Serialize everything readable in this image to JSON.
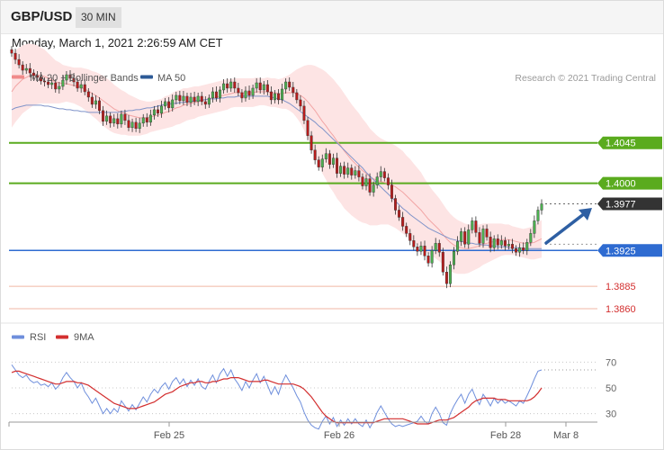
{
  "header": {
    "symbol": "GBP/USD",
    "timeframe": "30 MIN"
  },
  "subheader": {
    "datetime": "Monday, March 1, 2021 2:26:59 AM CET"
  },
  "colors": {
    "up_candle": "#4caf50",
    "down_candle": "#b71c1c",
    "bollinger": "#f2a0a0",
    "ma50": "#7f93c9",
    "resistance": "#5aab1e",
    "support": "#2e6bd1",
    "minor": "#f0b7a4",
    "rsi": "#6f8fdc",
    "rsi_ma": "#d32f2f",
    "arrow": "#2e5fa3"
  },
  "chart_data": [
    {
      "type": "candlestick",
      "legend": [
        {
          "name": "MA 20 + Bollinger Bands",
          "color": "#f08a8a"
        },
        {
          "name": "MA 50",
          "color": "#2d5a96"
        }
      ],
      "credit": "Research © 2021 Trading Central",
      "ylim": [
        1.3845,
        1.4112
      ],
      "x_ticks": [
        "Feb 25",
        "Feb 26",
        "Feb 28",
        "Mar 8"
      ],
      "price_levels": [
        {
          "value": 1.4045,
          "label": "1.4045",
          "kind": "resistance"
        },
        {
          "value": 1.4,
          "label": "1.4000",
          "kind": "resistance"
        },
        {
          "value": 1.3977,
          "label": "1.3977",
          "kind": "last"
        },
        {
          "value": 1.3925,
          "label": "1.3925",
          "kind": "support"
        },
        {
          "value": 1.3885,
          "label": "1.3885",
          "kind": "minor"
        },
        {
          "value": 1.386,
          "label": "1.3860",
          "kind": "minor"
        }
      ],
      "close": [
        1.4145,
        1.4138,
        1.4132,
        1.4126,
        1.4128,
        1.4123,
        1.412,
        1.4118,
        1.4114,
        1.4113,
        1.411,
        1.4112,
        1.4105,
        1.4108,
        1.4115,
        1.4121,
        1.4117,
        1.4113,
        1.4106,
        1.411,
        1.4102,
        1.4096,
        1.4088,
        1.4092,
        1.4081,
        1.4069,
        1.4075,
        1.4067,
        1.4072,
        1.4066,
        1.4077,
        1.407,
        1.4062,
        1.4068,
        1.4061,
        1.4067,
        1.4073,
        1.4068,
        1.4076,
        1.4082,
        1.4078,
        1.4086,
        1.4091,
        1.4084,
        1.4093,
        1.4098,
        1.4092,
        1.4097,
        1.409,
        1.4096,
        1.4091,
        1.4097,
        1.4091,
        1.4088,
        1.4095,
        1.4102,
        1.4095,
        1.4104,
        1.4111,
        1.4106,
        1.4113,
        1.4106,
        1.4101,
        1.4095,
        1.4103,
        1.4098,
        1.4106,
        1.4112,
        1.4104,
        1.411,
        1.4102,
        1.4093,
        1.41,
        1.4093,
        1.4105,
        1.4113,
        1.4107,
        1.4101,
        1.4093,
        1.4086,
        1.407,
        1.4053,
        1.4037,
        1.4026,
        1.4018,
        1.4027,
        1.4033,
        1.4021,
        1.4028,
        1.4011,
        1.4019,
        1.401,
        1.4017,
        1.4009,
        1.4014,
        1.4007,
        1.3997,
        1.4005,
        1.399,
        1.3998,
        1.4007,
        1.4013,
        1.4006,
        1.3998,
        1.3983,
        1.397,
        1.3962,
        1.3952,
        1.3944,
        1.3936,
        1.3929,
        1.3924,
        1.393,
        1.3919,
        1.3911,
        1.3925,
        1.3933,
        1.3923,
        1.3901,
        1.3888,
        1.3909,
        1.3924,
        1.3935,
        1.3946,
        1.3932,
        1.3948,
        1.3958,
        1.3945,
        1.3933,
        1.3949,
        1.394,
        1.3928,
        1.3938,
        1.3931,
        1.3936,
        1.393,
        1.3932,
        1.3927,
        1.3923,
        1.3928,
        1.3925,
        1.3934,
        1.3944,
        1.3958,
        1.397,
        1.3977
      ],
      "ma20": [
        1.4102,
        1.4108,
        1.4112,
        1.4116,
        1.4118,
        1.412,
        1.4121,
        1.4121,
        1.412,
        1.4119,
        1.4117,
        1.4115,
        1.4113,
        1.4112,
        1.4111,
        1.4111,
        1.411,
        1.4109,
        1.4108,
        1.4107,
        1.4105,
        1.4103,
        1.41,
        1.4098,
        1.4095,
        1.4092,
        1.4089,
        1.4086,
        1.4083,
        1.4081,
        1.4079,
        1.4078,
        1.4076,
        1.4075,
        1.4074,
        1.4073,
        1.4073,
        1.4073,
        1.4074,
        1.4075,
        1.4076,
        1.4077,
        1.4079,
        1.408,
        1.4082,
        1.4084,
        1.4085,
        1.4087,
        1.4088,
        1.4089,
        1.409,
        1.4091,
        1.4092,
        1.4093,
        1.4094,
        1.4095,
        1.4096,
        1.4097,
        1.4098,
        1.4099,
        1.41,
        1.4101,
        1.4101,
        1.4101,
        1.4101,
        1.4101,
        1.4101,
        1.4102,
        1.4102,
        1.4102,
        1.4102,
        1.4101,
        1.4101,
        1.41,
        1.41,
        1.4101,
        1.4101,
        1.4101,
        1.41,
        1.4098,
        1.4095,
        1.4091,
        1.4086,
        1.4081,
        1.4075,
        1.4069,
        1.4064,
        1.4058,
        1.4053,
        1.4047,
        1.4042,
        1.4036,
        1.4031,
        1.4026,
        1.4022,
        1.4018,
        1.4014,
        1.4011,
        1.4007,
        1.4005,
        1.4003,
        1.4002,
        1.4001,
        1.4,
        1.3998,
        1.3996,
        1.3993,
        1.399,
        1.3986,
        1.3982,
        1.3978,
        1.3974,
        1.397,
        1.3965,
        1.396,
        1.3956,
        1.3952,
        1.3948,
        1.3943,
        1.3938,
        1.3934,
        1.3931,
        1.3929,
        1.3928,
        1.3927,
        1.3927,
        1.3928,
        1.3929,
        1.393,
        1.3932,
        1.3933,
        1.3934,
        1.3935,
        1.3936,
        1.3937,
        1.3937,
        1.3937,
        1.3936,
        1.3935,
        1.3934,
        1.3933,
        1.3933,
        1.3933,
        1.3934,
        1.3936,
        1.3938
      ],
      "bb_width": [
        0.004,
        0.004,
        0.0039,
        0.0038,
        0.0037,
        0.0036,
        0.0034,
        0.0033,
        0.0031,
        0.003,
        0.0028,
        0.0026,
        0.0024,
        0.0023,
        0.0021,
        0.002,
        0.002,
        0.002,
        0.0021,
        0.0022,
        0.0023,
        0.0024,
        0.0025,
        0.0026,
        0.0027,
        0.0028,
        0.0028,
        0.0028,
        0.0027,
        0.0026,
        0.0025,
        0.0024,
        0.0023,
        0.0022,
        0.0021,
        0.002,
        0.0019,
        0.0018,
        0.0017,
        0.0017,
        0.0017,
        0.0017,
        0.0018,
        0.0018,
        0.0019,
        0.0019,
        0.0019,
        0.0019,
        0.0018,
        0.0018,
        0.0018,
        0.0017,
        0.0017,
        0.0017,
        0.0017,
        0.0017,
        0.0017,
        0.0017,
        0.0017,
        0.0017,
        0.0016,
        0.0016,
        0.0016,
        0.0016,
        0.0016,
        0.0016,
        0.0016,
        0.0016,
        0.0015,
        0.0015,
        0.0016,
        0.0016,
        0.0016,
        0.0016,
        0.0017,
        0.0018,
        0.002,
        0.0023,
        0.0027,
        0.0031,
        0.0036,
        0.0041,
        0.0046,
        0.005,
        0.0054,
        0.0058,
        0.006,
        0.0062,
        0.0063,
        0.0064,
        0.0064,
        0.0064,
        0.0063,
        0.0062,
        0.0061,
        0.006,
        0.0058,
        0.0056,
        0.0054,
        0.0052,
        0.005,
        0.0048,
        0.0047,
        0.0046,
        0.0046,
        0.0046,
        0.0046,
        0.0046,
        0.0045,
        0.0045,
        0.0044,
        0.0043,
        0.0042,
        0.004,
        0.0039,
        0.0037,
        0.0036,
        0.0035,
        0.0034,
        0.0033,
        0.0032,
        0.0031,
        0.003,
        0.0029,
        0.0028,
        0.0027,
        0.0026,
        0.0025,
        0.0024,
        0.0023,
        0.0022,
        0.0021,
        0.002,
        0.0019,
        0.0018,
        0.0017,
        0.0017,
        0.0016,
        0.0016,
        0.0016,
        0.0016,
        0.0017,
        0.0018,
        0.0019,
        0.002,
        0.0021
      ],
      "ma50": [
        1.4082,
        1.4084,
        1.4085,
        1.4086,
        1.4087,
        1.4087,
        1.4087,
        1.4087,
        1.4087,
        1.4086,
        1.4086,
        1.4085,
        1.4084,
        1.4083,
        1.4083,
        1.4082,
        1.4082,
        1.4081,
        1.4081,
        1.408,
        1.408,
        1.4079,
        1.4079,
        1.4079,
        1.4079,
        1.4079,
        1.4079,
        1.4079,
        1.4079,
        1.4079,
        1.408,
        1.408,
        1.4081,
        1.4081,
        1.4082,
        1.4082,
        1.4083,
        1.4084,
        1.4084,
        1.4085,
        1.4086,
        1.4087,
        1.4088,
        1.4088,
        1.4089,
        1.4089,
        1.409,
        1.409,
        1.4091,
        1.4091,
        1.4092,
        1.4092,
        1.4093,
        1.4093,
        1.4094,
        1.4094,
        1.4094,
        1.4095,
        1.4095,
        1.4096,
        1.4096,
        1.4096,
        1.4097,
        1.4097,
        1.4097,
        1.4097,
        1.4097,
        1.4097,
        1.4097,
        1.4097,
        1.4097,
        1.4096,
        1.4095,
        1.4094,
        1.4093,
        1.4091,
        1.4089,
        1.4086,
        1.4083,
        1.408,
        1.4077,
        1.4074,
        1.4071,
        1.4068,
        1.4064,
        1.4061,
        1.4057,
        1.4053,
        1.4049,
        1.4045,
        1.4041,
        1.4037,
        1.4033,
        1.4029,
        1.4025,
        1.4021,
        1.4017,
        1.4012,
        1.4008,
        1.4004,
        1.4,
        1.3996,
        1.3992,
        1.3988,
        1.3984,
        1.398,
        1.3976,
        1.3972,
        1.3969,
        1.3965,
        1.3962,
        1.3959,
        1.3956,
        1.3953,
        1.395,
        1.3948,
        1.3946,
        1.3944,
        1.3942,
        1.394,
        1.3938,
        1.3937,
        1.3936,
        1.3935,
        1.3934,
        1.3933,
        1.3933,
        1.3932,
        1.3932,
        1.3931,
        1.3931,
        1.393,
        1.393,
        1.3929,
        1.3929,
        1.3929,
        1.3928,
        1.3928,
        1.3928,
        1.3928,
        1.3927,
        1.3927,
        1.3927,
        1.3927,
        1.3927,
        1.3927
      ]
    },
    {
      "type": "line",
      "legend": [
        {
          "name": "RSI",
          "color": "#6f8fdc"
        },
        {
          "name": "9MA",
          "color": "#d32f2f"
        }
      ],
      "ylim": [
        15,
        85
      ],
      "y_ticks": [
        70,
        50,
        30
      ],
      "rsi": [
        68,
        64,
        60,
        58,
        60,
        56,
        54,
        55,
        52,
        53,
        51,
        54,
        49,
        52,
        58,
        62,
        58,
        55,
        50,
        54,
        47,
        43,
        38,
        42,
        36,
        30,
        34,
        30,
        34,
        31,
        40,
        36,
        32,
        37,
        33,
        38,
        43,
        39,
        45,
        49,
        46,
        51,
        54,
        49,
        55,
        58,
        53,
        57,
        51,
        56,
        52,
        57,
        51,
        49,
        55,
        60,
        54,
        61,
        65,
        59,
        64,
        57,
        53,
        48,
        55,
        50,
        56,
        61,
        54,
        59,
        52,
        45,
        51,
        45,
        54,
        60,
        55,
        50,
        44,
        39,
        31,
        25,
        21,
        19,
        18,
        24,
        28,
        22,
        27,
        20,
        25,
        21,
        26,
        22,
        26,
        22,
        20,
        25,
        19,
        24,
        31,
        36,
        31,
        26,
        22,
        20,
        21,
        20,
        21,
        22,
        23,
        24,
        28,
        24,
        22,
        30,
        35,
        30,
        23,
        21,
        30,
        36,
        41,
        45,
        38,
        45,
        49,
        42,
        37,
        45,
        41,
        36,
        42,
        38,
        41,
        38,
        40,
        38,
        36,
        40,
        38,
        44,
        50,
        57,
        63,
        64
      ],
      "rsi_ma": [
        62,
        63,
        63,
        62,
        61,
        60,
        59,
        58,
        57,
        56,
        55,
        54,
        53,
        53,
        54,
        55,
        55,
        55,
        54,
        54,
        53,
        52,
        50,
        48,
        46,
        44,
        42,
        40,
        38,
        37,
        36,
        35,
        34,
        34,
        34,
        35,
        36,
        37,
        38,
        39,
        41,
        43,
        45,
        46,
        47,
        49,
        51,
        52,
        53,
        54,
        54,
        55,
        55,
        54,
        54,
        55,
        55,
        56,
        57,
        57,
        58,
        58,
        58,
        57,
        56,
        55,
        55,
        55,
        55,
        56,
        56,
        55,
        54,
        53,
        53,
        53,
        53,
        53,
        52,
        51,
        49,
        46,
        43,
        39,
        35,
        31,
        28,
        26,
        24,
        23,
        23,
        23,
        23,
        23,
        23,
        23,
        23,
        23,
        23,
        23,
        24,
        25,
        26,
        26,
        26,
        26,
        26,
        26,
        25,
        24,
        23,
        22,
        22,
        22,
        22,
        23,
        24,
        25,
        25,
        25,
        26,
        27,
        29,
        31,
        33,
        35,
        38,
        40,
        41,
        42,
        42,
        42,
        42,
        41,
        41,
        41,
        40,
        40,
        40,
        40,
        40,
        40,
        41,
        43,
        46,
        50
      ]
    }
  ]
}
